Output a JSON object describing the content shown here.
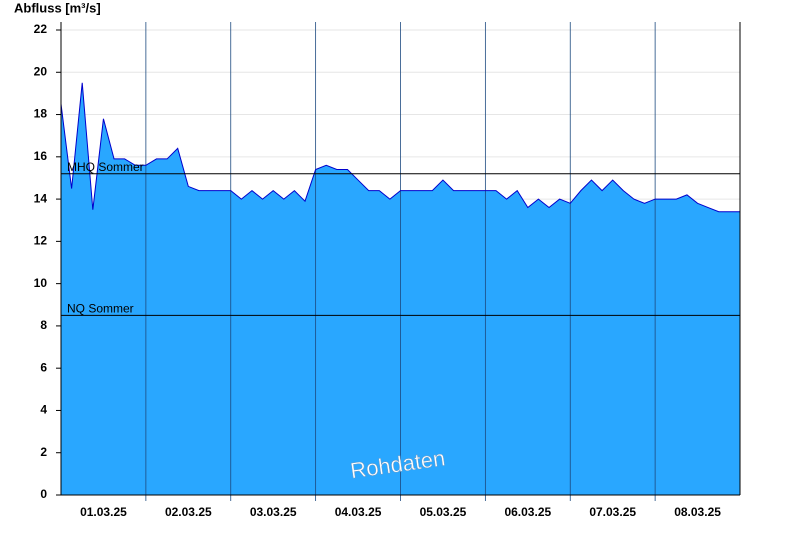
{
  "chart_data": {
    "type": "area",
    "y_label": "Abfluss [m³/s]",
    "watermark": "Rohdaten",
    "x": [
      0,
      0.125,
      0.25,
      0.375,
      0.5,
      0.625,
      0.75,
      0.875,
      1,
      1.125,
      1.25,
      1.375,
      1.5,
      1.625,
      1.75,
      1.875,
      2,
      2.125,
      2.25,
      2.375,
      2.5,
      2.625,
      2.75,
      2.875,
      3,
      3.125,
      3.25,
      3.375,
      3.5,
      3.625,
      3.75,
      3.875,
      4,
      4.125,
      4.25,
      4.375,
      4.5,
      4.625,
      4.75,
      4.875,
      5,
      5.125,
      5.25,
      5.375,
      5.5,
      5.625,
      5.75,
      5.875,
      6,
      6.125,
      6.25,
      6.375,
      6.5,
      6.625,
      6.75,
      6.875,
      7,
      7.125,
      7.25,
      7.375,
      7.5,
      7.625,
      7.75,
      7.875,
      8
    ],
    "values": [
      18.5,
      14.5,
      19.5,
      13.5,
      17.8,
      15.9,
      15.9,
      15.6,
      15.6,
      15.9,
      15.9,
      16.4,
      14.6,
      14.4,
      14.4,
      14.4,
      14.4,
      14.0,
      14.4,
      14.0,
      14.4,
      14.0,
      14.4,
      13.9,
      15.4,
      15.6,
      15.4,
      15.4,
      14.9,
      14.4,
      14.4,
      14.0,
      14.4,
      14.4,
      14.4,
      14.4,
      14.9,
      14.4,
      14.4,
      14.4,
      14.4,
      14.4,
      14.0,
      14.4,
      13.6,
      14.0,
      13.6,
      14.0,
      13.8,
      14.4,
      14.9,
      14.4,
      14.9,
      14.4,
      14.0,
      13.8,
      14.0,
      14.0,
      14.0,
      14.2,
      13.8,
      13.6,
      13.4,
      13.4,
      13.4
    ],
    "fill_color": "#29a7ff",
    "line_color": "#0000cc",
    "xlim": [
      0,
      8
    ],
    "xticks": [
      {
        "value": 0.5,
        "label": "01.03.25"
      },
      {
        "value": 1.5,
        "label": "02.03.25"
      },
      {
        "value": 2.5,
        "label": "03.03.25"
      },
      {
        "value": 3.5,
        "label": "04.03.25"
      },
      {
        "value": 4.5,
        "label": "05.03.25"
      },
      {
        "value": 5.5,
        "label": "06.03.25"
      },
      {
        "value": 6.5,
        "label": "07.03.25"
      },
      {
        "value": 7.5,
        "label": "08.03.25"
      }
    ],
    "xgrid": [
      1,
      2,
      3,
      4,
      5,
      6,
      7
    ],
    "ylim": [
      0,
      22
    ],
    "yticks": [
      0,
      2,
      4,
      6,
      8,
      10,
      12,
      14,
      16,
      18,
      20,
      22
    ],
    "grid": true,
    "reference_lines": [
      {
        "label": "MHQ Sommer",
        "value": 15.2
      },
      {
        "label": "NQ Sommer",
        "value": 8.5
      }
    ]
  }
}
